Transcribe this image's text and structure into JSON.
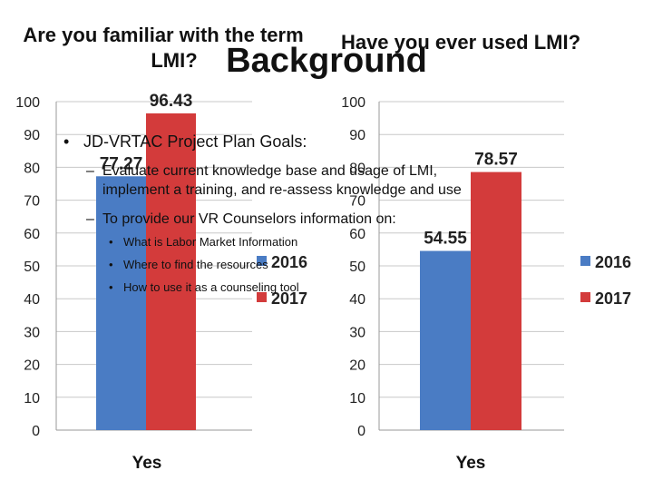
{
  "chart_data": [
    {
      "type": "bar",
      "title": "Are you familiar with the term LMI?",
      "title_lines": [
        "Are you familiar with the term",
        "LMI?"
      ],
      "categories": [
        "Yes"
      ],
      "series": [
        {
          "name": "2016",
          "values": [
            77.27
          ],
          "color": "#4a7cc4"
        },
        {
          "name": "2017",
          "values": [
            96.43
          ],
          "color": "#d33b3b"
        }
      ],
      "data_labels": [
        "77.27",
        "96.43"
      ],
      "ylim": [
        0,
        100
      ],
      "yticks": [
        "0",
        "10",
        "20",
        "30",
        "40",
        "50",
        "60",
        "70",
        "80",
        "90",
        "100"
      ],
      "grid": true,
      "legend": "right"
    },
    {
      "type": "bar",
      "title": "Have you ever used LMI?",
      "title_lines": [
        "Have you ever used LMI?"
      ],
      "categories": [
        "Yes"
      ],
      "series": [
        {
          "name": "2016",
          "values": [
            54.55
          ],
          "color": "#4a7cc4"
        },
        {
          "name": "2017",
          "values": [
            78.57
          ],
          "color": "#d33b3b"
        }
      ],
      "data_labels": [
        "54.55",
        "78.57"
      ],
      "ylim": [
        0,
        100
      ],
      "yticks": [
        "0",
        "10",
        "20",
        "30",
        "40",
        "50",
        "60",
        "70",
        "80",
        "90",
        "100"
      ],
      "grid": true,
      "legend": "right"
    }
  ],
  "slide": {
    "title": "Background",
    "bullet_l1_mark": "•",
    "bullet_l1": "JD-VRTAC Project Plan Goals:",
    "bullet_l2_mark": "–",
    "bullet_l2a_line1": "Evaluate current knowledge base and usage of LMI,",
    "bullet_l2a_line2": "implement a training, and re-assess knowledge and use",
    "bullet_l2b": "To provide our VR Counselors information on:",
    "bullet_l3_mark": "•",
    "bullet_l3": [
      "What is Labor Market Information",
      "Where to find the resources",
      "How to use it as a counseling tool"
    ]
  }
}
